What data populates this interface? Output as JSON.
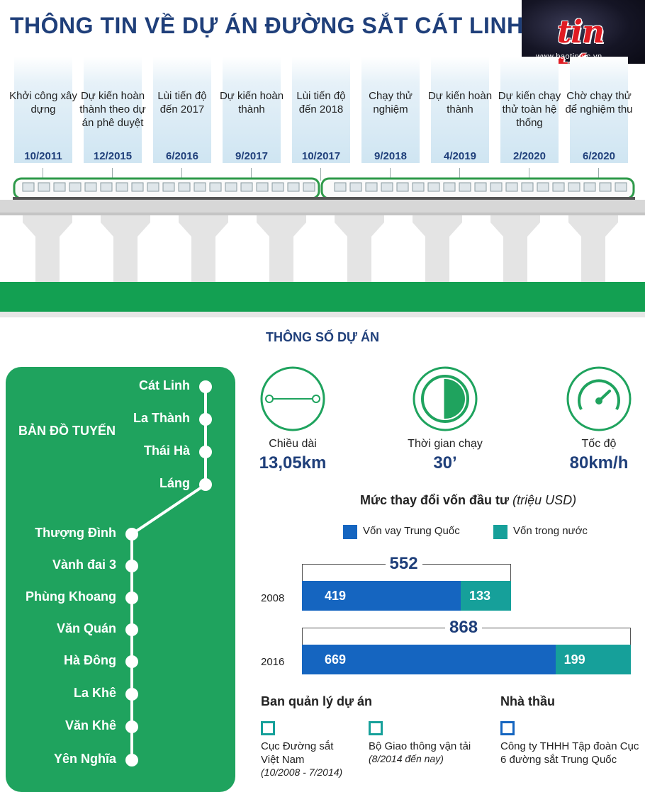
{
  "header": {
    "title": "THÔNG  TIN VỀ DỰ ÁN ĐƯỜNG SẮT CÁT LINH -",
    "logo_name": "tin tức",
    "logo_url": "www.baotintuc.vn"
  },
  "timeline": [
    {
      "label": "Khởi công xây dựng",
      "date": "10/2011"
    },
    {
      "label": "Dự kiến hoàn thành theo dự án phê duyệt",
      "date": "12/2015"
    },
    {
      "label": "Lùi tiến độ đến 2017",
      "date": "6/2016"
    },
    {
      "label": "Dự kiến hoàn thành",
      "date": "9/2017"
    },
    {
      "label": "Lùi tiến độ đến 2018",
      "date": "10/2017"
    },
    {
      "label": "Chạy thử nghiệm",
      "date": "9/2018"
    },
    {
      "label": "Dự kiến hoàn thành",
      "date": "4/2019"
    },
    {
      "label": "Dự kiến chạy thử toàn hệ thống",
      "date": "2/2020"
    },
    {
      "label": "Chờ chạy thử để nghiệm thu",
      "date": "6/2020"
    }
  ],
  "section_title": "THÔNG SỐ DỰ ÁN",
  "map": {
    "title": "BẢN ĐỒ TUYẾN",
    "stations": [
      "Cát Linh",
      "La Thành",
      "Thái Hà",
      "Láng",
      "Thượng Đình",
      "Vành đai 3",
      "Phùng Khoang",
      "Văn Quán",
      "Hà Đông",
      "La Khê",
      "Văn Khê",
      "Yên Nghĩa"
    ]
  },
  "specs": [
    {
      "label": "Chiều dài",
      "value": "13,05km",
      "icon": "length-icon"
    },
    {
      "label": "Thời gian chạy",
      "value": "30’",
      "icon": "clock-icon"
    },
    {
      "label": "Tốc độ",
      "value": "80km/h",
      "icon": "speedometer-icon"
    }
  ],
  "chart_data": {
    "type": "bar",
    "title": "Mức thay đổi vốn đầu tư",
    "unit": "(triệu USD)",
    "categories": [
      "2008",
      "2016"
    ],
    "series": [
      {
        "name": "Vốn vay Trung Quốc",
        "values": [
          419,
          669
        ],
        "color": "#1565c0"
      },
      {
        "name": "Vốn trong nước",
        "values": [
          133,
          199
        ],
        "color": "#16a09a"
      }
    ],
    "totals": [
      "552",
      "868"
    ],
    "stacked": true,
    "orientation": "horizontal",
    "legend_position": "top"
  },
  "management": {
    "heading": "Ban quản lý dự án",
    "items": [
      {
        "name": "Cục Đường sắt Việt Nam",
        "period": "(10/2008 - 7/2014)"
      },
      {
        "name": "Bộ Giao thông vận tải",
        "period": "(8/2014 đến nay)"
      }
    ]
  },
  "contractor": {
    "heading": "Nhà thầu",
    "name": "Công ty THHH Tập đoàn Cục 6 đường sắt Trung Quốc"
  },
  "colors": {
    "navy": "#1f3f7a",
    "green": "#1fa35e",
    "blue": "#1565c0",
    "teal": "#16a09a"
  }
}
